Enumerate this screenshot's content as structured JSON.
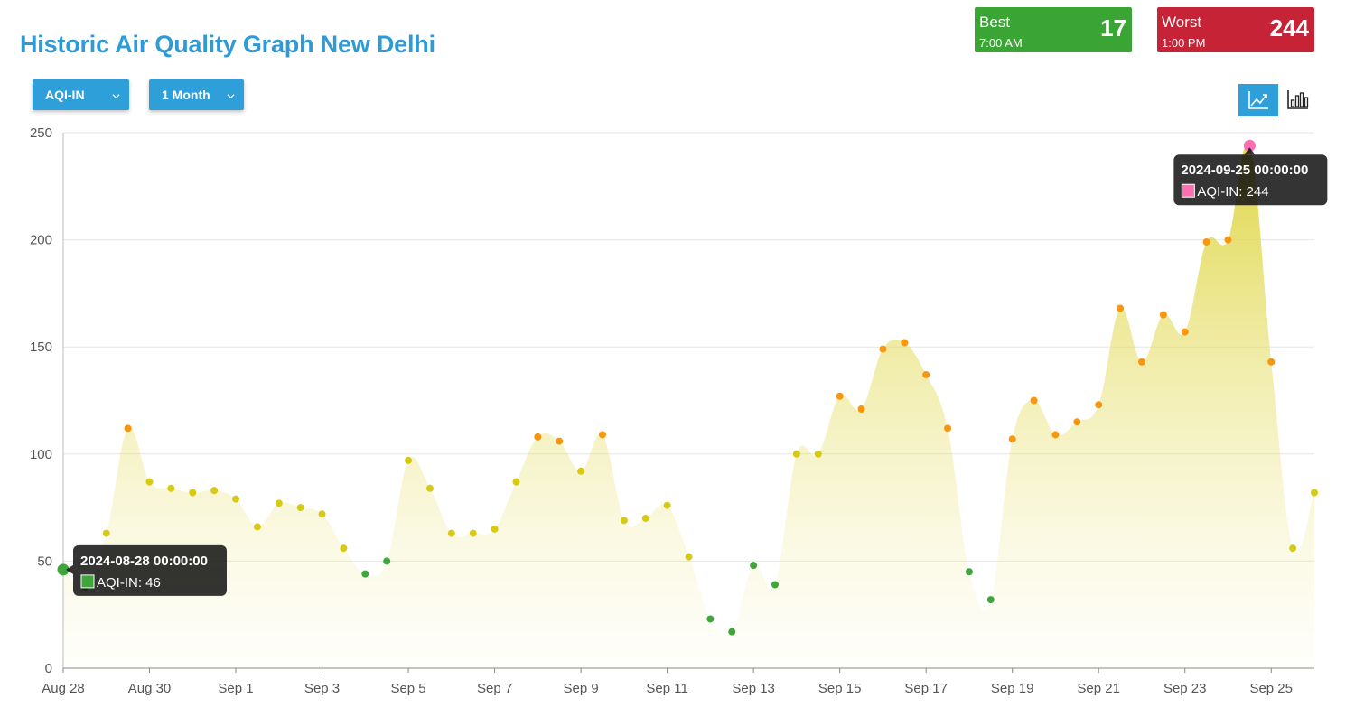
{
  "header": {
    "title": "Historic Air Quality Graph New Delhi"
  },
  "best": {
    "label": "Best",
    "time": "7:00 AM",
    "value": "17",
    "color": "#3aa535"
  },
  "worst": {
    "label": "Worst",
    "time": "1:00 PM",
    "value": "244",
    "color": "#c62336"
  },
  "controls": {
    "metric_select": "AQI-IN",
    "range_select": "1 Month",
    "view_toggle": [
      "line-chart-icon",
      "bar-chart-icon"
    ],
    "active_view": "line"
  },
  "chart_data": {
    "type": "area",
    "ylim": [
      0,
      250
    ],
    "yticks": [
      0,
      50,
      100,
      150,
      200,
      250
    ],
    "x_tick_labels": [
      "Aug 28",
      "Aug 30",
      "Sep 1",
      "Sep 3",
      "Sep 5",
      "Sep 7",
      "Sep 9",
      "Sep 11",
      "Sep 13",
      "Sep 15",
      "Sep 17",
      "Sep 19",
      "Sep 21",
      "Sep 23",
      "Sep 25"
    ],
    "grid": true,
    "series": [
      {
        "values": [
          46,
          38,
          63,
          112,
          87,
          84,
          82,
          83,
          79,
          66,
          77,
          75,
          72,
          56,
          44,
          50,
          97,
          84,
          63,
          63,
          65,
          87,
          108,
          106,
          92,
          109,
          69,
          70,
          76,
          52,
          23,
          17,
          48,
          39,
          100,
          100,
          127,
          121,
          149,
          152,
          137,
          112,
          45,
          32,
          107,
          125,
          109,
          115,
          123,
          168,
          143,
          165,
          157,
          199,
          200,
          244,
          143,
          56,
          82
        ]
      }
    ],
    "point_color_bands": [
      {
        "max": 50,
        "color": "#3ea63a"
      },
      {
        "max": 100,
        "color": "#d6ca17"
      },
      {
        "max": 200,
        "color": "#f7960f"
      },
      {
        "max": 300,
        "color": "#ff6fb3"
      }
    ],
    "tooltips": [
      {
        "index": 0,
        "date": "2024-08-28 00:00:00",
        "label": "AQI-IN: 46",
        "swatch": "#3ea63a"
      },
      {
        "index": 55,
        "date": "2024-09-25 00:00:00",
        "label": "AQI-IN: 244",
        "swatch": "#ff6fb3"
      }
    ],
    "area_fill": "#e2d94a"
  }
}
